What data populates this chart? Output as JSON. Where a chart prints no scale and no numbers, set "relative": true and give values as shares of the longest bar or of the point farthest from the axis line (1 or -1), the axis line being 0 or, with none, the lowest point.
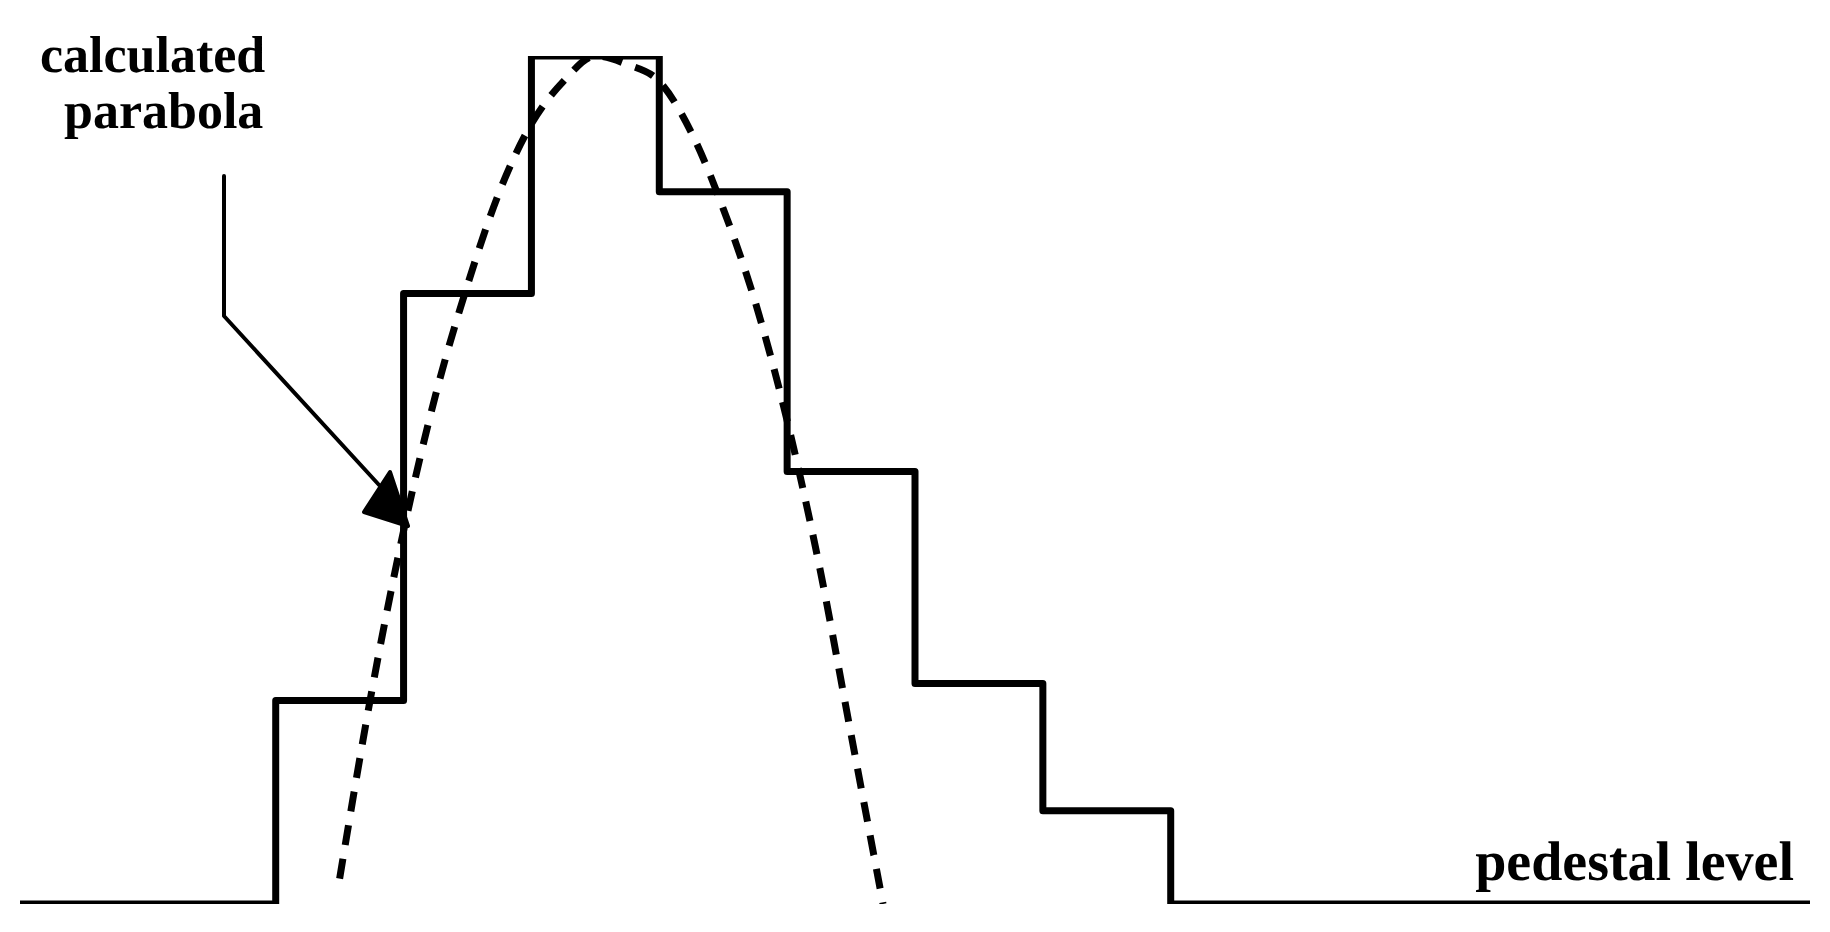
{
  "chart_data": {
    "type": "line",
    "relative": true,
    "tick_labels": false,
    "marker": "none",
    "categories": [
      null,
      null,
      null,
      null,
      null,
      null,
      null,
      null,
      null,
      null,
      null,
      null,
      null,
      null,
      null,
      null,
      null,
      null,
      null,
      null,
      null,
      null,
      null,
      null,
      null,
      null,
      null,
      null,
      null,
      null,
      null,
      null,
      null,
      null,
      null,
      null,
      null,
      null,
      null,
      null,
      null,
      null,
      null,
      null,
      null,
      null,
      null,
      null,
      null,
      null,
      null,
      null,
      null,
      null,
      null,
      null,
      null
    ],
    "series": [
      {
        "type": "step",
        "color": "#000000",
        "line_style": "solid",
        "values": [
          0,
          0,
          0,
          0,
          0,
          0,
          0,
          0,
          0.24,
          0.24,
          0.24,
          0.24,
          0.72,
          0.72,
          0.72,
          0.72,
          1,
          1,
          1,
          1,
          0.84,
          0.84,
          0.84,
          0.84,
          0.51,
          0.51,
          0.51,
          0.51,
          0.26,
          0.26,
          0.26,
          0.26,
          0.11,
          0.11,
          0.11,
          0.11,
          0,
          0,
          0,
          0,
          0,
          0,
          0,
          0,
          0,
          0,
          0,
          0,
          0,
          0,
          0,
          0,
          0,
          0,
          0,
          0,
          0
        ]
      },
      {
        "color": "#000000",
        "line_style": "dashed",
        "values": [
          null,
          null,
          null,
          null,
          null,
          null,
          null,
          null,
          null,
          null,
          0.03,
          0.25,
          0.44,
          0.6,
          0.73,
          0.84,
          0.92,
          0.97,
          1,
          0.99,
          0.97,
          0.91,
          0.82,
          0.71,
          0.57,
          0.4,
          0.2,
          0,
          null,
          null,
          null,
          null,
          null,
          null,
          null,
          null,
          null,
          null,
          null,
          null,
          null,
          null,
          null,
          null,
          null,
          null,
          null,
          null,
          null,
          null,
          null,
          null,
          null,
          null,
          null,
          null,
          null
        ]
      }
    ],
    "annotations": [
      "calculated parabola",
      "pedestal level"
    ]
  }
}
